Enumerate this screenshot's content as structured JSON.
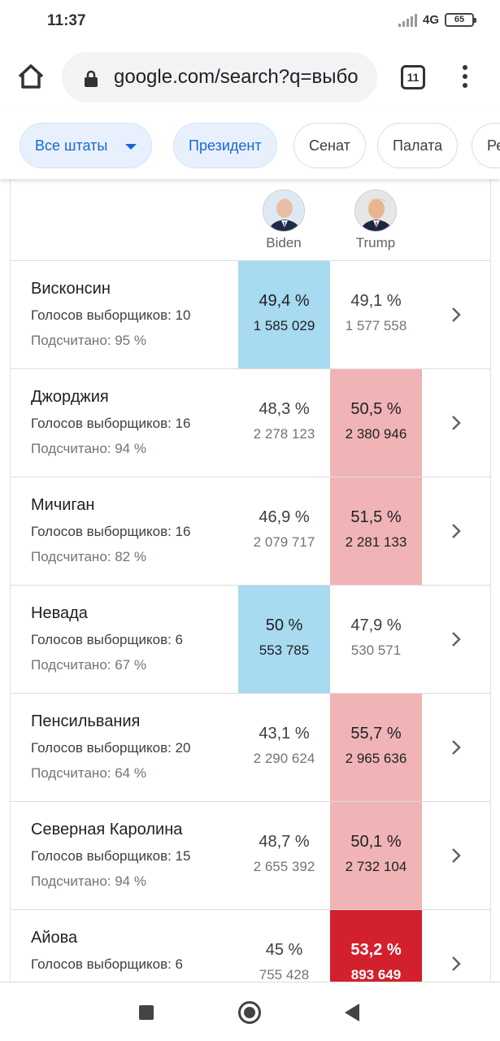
{
  "status_bar": {
    "time": "11:37",
    "network": "4G",
    "battery": "65"
  },
  "browser": {
    "url": "google.com/search?q=выбо",
    "tab_count": "11"
  },
  "filters": {
    "chips": [
      {
        "label": "Все штаты",
        "selected": true,
        "dropdown": true
      },
      {
        "label": "Президент",
        "selected": true
      },
      {
        "label": "Сенат",
        "selected": false
      },
      {
        "label": "Палата",
        "selected": false
      },
      {
        "label": "Ре",
        "selected": false
      }
    ]
  },
  "candidates": [
    {
      "name": "Biden",
      "party_color": "#a8daf0"
    },
    {
      "name": "Trump",
      "party_color": "#f0b4b6"
    }
  ],
  "rows": [
    {
      "state": "Висконсин",
      "electors": "Голосов выборщиков: 10",
      "counted": "Подсчитано: 95 %",
      "biden_pct": "49,4 %",
      "biden_votes": "1 585 029",
      "trump_pct": "49,1 %",
      "trump_votes": "1 577 558",
      "leader": "biden"
    },
    {
      "state": "Джорджия",
      "electors": "Голосов выборщиков: 16",
      "counted": "Подсчитано: 94 %",
      "biden_pct": "48,3 %",
      "biden_votes": "2 278 123",
      "trump_pct": "50,5 %",
      "trump_votes": "2 380 946",
      "leader": "trump"
    },
    {
      "state": "Мичиган",
      "electors": "Голосов выборщиков: 16",
      "counted": "Подсчитано: 82 %",
      "biden_pct": "46,9 %",
      "biden_votes": "2 079 717",
      "trump_pct": "51,5 %",
      "trump_votes": "2 281 133",
      "leader": "trump"
    },
    {
      "state": "Невада",
      "electors": "Голосов выборщиков: 6",
      "counted": "Подсчитано: 67 %",
      "biden_pct": "50 %",
      "biden_votes": "553 785",
      "trump_pct": "47,9 %",
      "trump_votes": "530 571",
      "leader": "biden"
    },
    {
      "state": "Пенсильвания",
      "electors": "Голосов выборщиков: 20",
      "counted": "Подсчитано: 64 %",
      "biden_pct": "43,1 %",
      "biden_votes": "2 290 624",
      "trump_pct": "55,7 %",
      "trump_votes": "2 965 636",
      "leader": "trump"
    },
    {
      "state": "Северная Каролина",
      "electors": "Голосов выборщиков: 15",
      "counted": "Подсчитано: 94 %",
      "biden_pct": "48,7 %",
      "biden_votes": "2 655 392",
      "trump_pct": "50,1 %",
      "trump_votes": "2 732 104",
      "leader": "trump"
    },
    {
      "state": "Айова",
      "electors": "Голосов выборщиков: 6",
      "counted": "",
      "biden_pct": "45 %",
      "biden_votes": "755 428",
      "trump_pct": "53,2 %",
      "trump_votes": "893 649",
      "leader": "trump-called"
    }
  ]
}
